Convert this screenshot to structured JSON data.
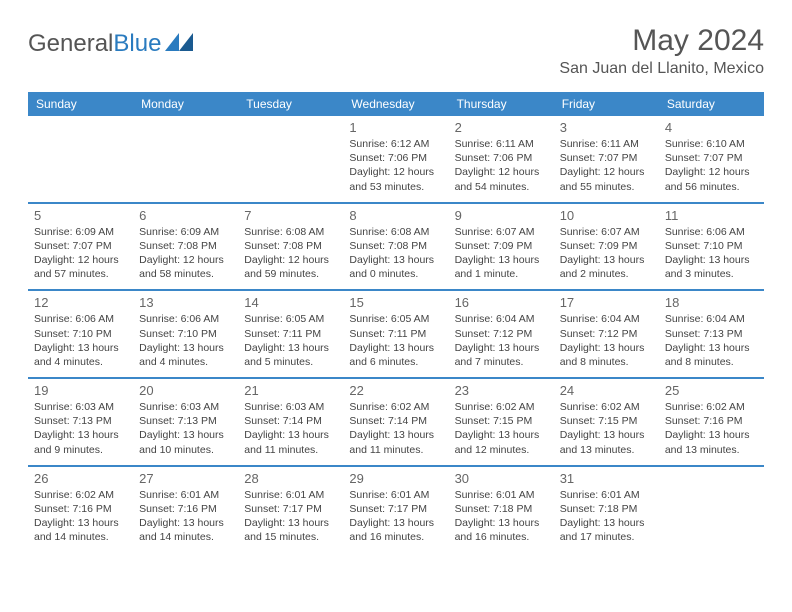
{
  "brand": {
    "part1": "General",
    "part2": "Blue"
  },
  "title": "May 2024",
  "location": "San Juan del Llanito, Mexico",
  "colors": {
    "header_bg": "#3b87c8",
    "header_text": "#ffffff",
    "border": "#3b87c8",
    "text": "#444444",
    "title": "#555555"
  },
  "day_names": [
    "Sunday",
    "Monday",
    "Tuesday",
    "Wednesday",
    "Thursday",
    "Friday",
    "Saturday"
  ],
  "weeks": [
    [
      null,
      null,
      null,
      {
        "n": "1",
        "sr": "Sunrise: 6:12 AM",
        "ss": "Sunset: 7:06 PM",
        "d1": "Daylight: 12 hours",
        "d2": "and 53 minutes."
      },
      {
        "n": "2",
        "sr": "Sunrise: 6:11 AM",
        "ss": "Sunset: 7:06 PM",
        "d1": "Daylight: 12 hours",
        "d2": "and 54 minutes."
      },
      {
        "n": "3",
        "sr": "Sunrise: 6:11 AM",
        "ss": "Sunset: 7:07 PM",
        "d1": "Daylight: 12 hours",
        "d2": "and 55 minutes."
      },
      {
        "n": "4",
        "sr": "Sunrise: 6:10 AM",
        "ss": "Sunset: 7:07 PM",
        "d1": "Daylight: 12 hours",
        "d2": "and 56 minutes."
      }
    ],
    [
      {
        "n": "5",
        "sr": "Sunrise: 6:09 AM",
        "ss": "Sunset: 7:07 PM",
        "d1": "Daylight: 12 hours",
        "d2": "and 57 minutes."
      },
      {
        "n": "6",
        "sr": "Sunrise: 6:09 AM",
        "ss": "Sunset: 7:08 PM",
        "d1": "Daylight: 12 hours",
        "d2": "and 58 minutes."
      },
      {
        "n": "7",
        "sr": "Sunrise: 6:08 AM",
        "ss": "Sunset: 7:08 PM",
        "d1": "Daylight: 12 hours",
        "d2": "and 59 minutes."
      },
      {
        "n": "8",
        "sr": "Sunrise: 6:08 AM",
        "ss": "Sunset: 7:08 PM",
        "d1": "Daylight: 13 hours",
        "d2": "and 0 minutes."
      },
      {
        "n": "9",
        "sr": "Sunrise: 6:07 AM",
        "ss": "Sunset: 7:09 PM",
        "d1": "Daylight: 13 hours",
        "d2": "and 1 minute."
      },
      {
        "n": "10",
        "sr": "Sunrise: 6:07 AM",
        "ss": "Sunset: 7:09 PM",
        "d1": "Daylight: 13 hours",
        "d2": "and 2 minutes."
      },
      {
        "n": "11",
        "sr": "Sunrise: 6:06 AM",
        "ss": "Sunset: 7:10 PM",
        "d1": "Daylight: 13 hours",
        "d2": "and 3 minutes."
      }
    ],
    [
      {
        "n": "12",
        "sr": "Sunrise: 6:06 AM",
        "ss": "Sunset: 7:10 PM",
        "d1": "Daylight: 13 hours",
        "d2": "and 4 minutes."
      },
      {
        "n": "13",
        "sr": "Sunrise: 6:06 AM",
        "ss": "Sunset: 7:10 PM",
        "d1": "Daylight: 13 hours",
        "d2": "and 4 minutes."
      },
      {
        "n": "14",
        "sr": "Sunrise: 6:05 AM",
        "ss": "Sunset: 7:11 PM",
        "d1": "Daylight: 13 hours",
        "d2": "and 5 minutes."
      },
      {
        "n": "15",
        "sr": "Sunrise: 6:05 AM",
        "ss": "Sunset: 7:11 PM",
        "d1": "Daylight: 13 hours",
        "d2": "and 6 minutes."
      },
      {
        "n": "16",
        "sr": "Sunrise: 6:04 AM",
        "ss": "Sunset: 7:12 PM",
        "d1": "Daylight: 13 hours",
        "d2": "and 7 minutes."
      },
      {
        "n": "17",
        "sr": "Sunrise: 6:04 AM",
        "ss": "Sunset: 7:12 PM",
        "d1": "Daylight: 13 hours",
        "d2": "and 8 minutes."
      },
      {
        "n": "18",
        "sr": "Sunrise: 6:04 AM",
        "ss": "Sunset: 7:13 PM",
        "d1": "Daylight: 13 hours",
        "d2": "and 8 minutes."
      }
    ],
    [
      {
        "n": "19",
        "sr": "Sunrise: 6:03 AM",
        "ss": "Sunset: 7:13 PM",
        "d1": "Daylight: 13 hours",
        "d2": "and 9 minutes."
      },
      {
        "n": "20",
        "sr": "Sunrise: 6:03 AM",
        "ss": "Sunset: 7:13 PM",
        "d1": "Daylight: 13 hours",
        "d2": "and 10 minutes."
      },
      {
        "n": "21",
        "sr": "Sunrise: 6:03 AM",
        "ss": "Sunset: 7:14 PM",
        "d1": "Daylight: 13 hours",
        "d2": "and 11 minutes."
      },
      {
        "n": "22",
        "sr": "Sunrise: 6:02 AM",
        "ss": "Sunset: 7:14 PM",
        "d1": "Daylight: 13 hours",
        "d2": "and 11 minutes."
      },
      {
        "n": "23",
        "sr": "Sunrise: 6:02 AM",
        "ss": "Sunset: 7:15 PM",
        "d1": "Daylight: 13 hours",
        "d2": "and 12 minutes."
      },
      {
        "n": "24",
        "sr": "Sunrise: 6:02 AM",
        "ss": "Sunset: 7:15 PM",
        "d1": "Daylight: 13 hours",
        "d2": "and 13 minutes."
      },
      {
        "n": "25",
        "sr": "Sunrise: 6:02 AM",
        "ss": "Sunset: 7:16 PM",
        "d1": "Daylight: 13 hours",
        "d2": "and 13 minutes."
      }
    ],
    [
      {
        "n": "26",
        "sr": "Sunrise: 6:02 AM",
        "ss": "Sunset: 7:16 PM",
        "d1": "Daylight: 13 hours",
        "d2": "and 14 minutes."
      },
      {
        "n": "27",
        "sr": "Sunrise: 6:01 AM",
        "ss": "Sunset: 7:16 PM",
        "d1": "Daylight: 13 hours",
        "d2": "and 14 minutes."
      },
      {
        "n": "28",
        "sr": "Sunrise: 6:01 AM",
        "ss": "Sunset: 7:17 PM",
        "d1": "Daylight: 13 hours",
        "d2": "and 15 minutes."
      },
      {
        "n": "29",
        "sr": "Sunrise: 6:01 AM",
        "ss": "Sunset: 7:17 PM",
        "d1": "Daylight: 13 hours",
        "d2": "and 16 minutes."
      },
      {
        "n": "30",
        "sr": "Sunrise: 6:01 AM",
        "ss": "Sunset: 7:18 PM",
        "d1": "Daylight: 13 hours",
        "d2": "and 16 minutes."
      },
      {
        "n": "31",
        "sr": "Sunrise: 6:01 AM",
        "ss": "Sunset: 7:18 PM",
        "d1": "Daylight: 13 hours",
        "d2": "and 17 minutes."
      },
      null
    ]
  ]
}
